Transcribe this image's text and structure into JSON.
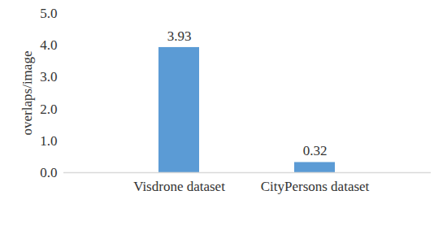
{
  "chart_data": {
    "type": "bar",
    "categories": [
      "Visdrone dataset",
      "CityPersons dataset"
    ],
    "values": [
      3.93,
      0.32
    ],
    "color": "#5b9bd5",
    "y_label": "overlaps/image",
    "ylim": [
      0,
      5
    ],
    "yticks": [
      0,
      1,
      2,
      3,
      4,
      5
    ],
    "grid": false,
    "data_labels": true
  }
}
